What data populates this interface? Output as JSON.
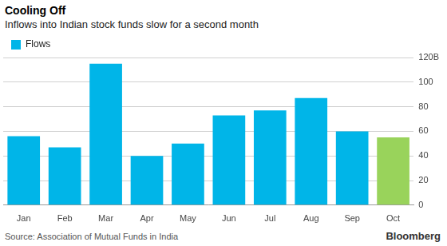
{
  "chart_data": {
    "type": "bar",
    "title": "Cooling Off",
    "subtitle": "Inflows into Indian stock funds slow for a second month",
    "categories": [
      "Jan",
      "Feb",
      "Mar",
      "Apr",
      "May",
      "Jun",
      "Jul",
      "Aug",
      "Sep",
      "Oct"
    ],
    "series": [
      {
        "name": "Flows",
        "values": [
          56,
          47,
          115,
          40,
          50,
          73,
          77,
          87,
          60,
          55
        ],
        "colors": [
          "#00b5e8",
          "#00b5e8",
          "#00b5e8",
          "#00b5e8",
          "#00b5e8",
          "#00b5e8",
          "#00b5e8",
          "#00b5e8",
          "#00b5e8",
          "#99d35b"
        ]
      }
    ],
    "ylim": [
      0,
      120
    ],
    "yticks": [
      0,
      20,
      40,
      60,
      80,
      100,
      {
        "value": 120,
        "label": "120B"
      }
    ],
    "grid": true,
    "legend": "upper left",
    "source": "Source: Association of Mutual Funds in India",
    "logo": "Bloomberg"
  }
}
